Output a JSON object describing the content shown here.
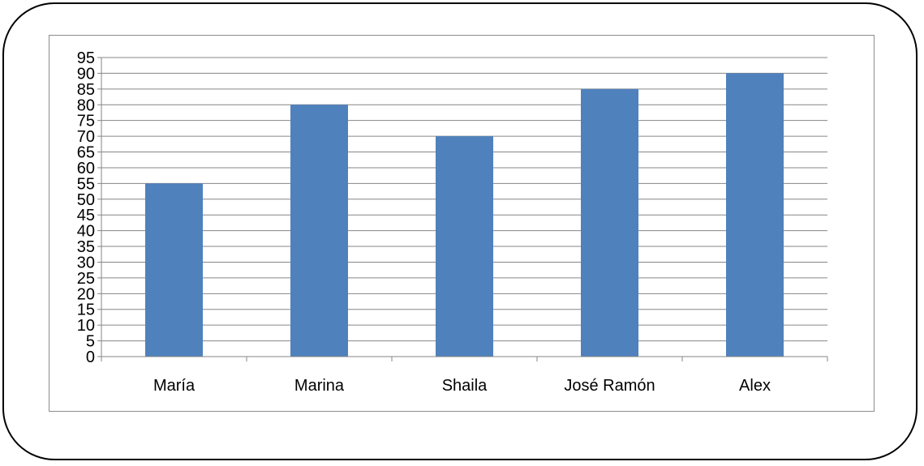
{
  "chart_data": {
    "type": "bar",
    "title": "",
    "xlabel": "",
    "ylabel": "",
    "categories": [
      "María",
      "Marina",
      "Shaila",
      "José Ramón",
      "Alex"
    ],
    "values": [
      55,
      80,
      70,
      85,
      90
    ],
    "ylim": [
      0,
      95
    ],
    "ytick_step": 5,
    "yticks": [
      "0",
      "5",
      "10",
      "15",
      "20",
      "25",
      "30",
      "35",
      "40",
      "45",
      "50",
      "55",
      "60",
      "65",
      "70",
      "75",
      "80",
      "85",
      "90",
      "95"
    ],
    "grid": true,
    "legend": "none",
    "colors": {
      "bar": "#4f81bd",
      "grid": "#868686",
      "axis": "#868686",
      "frame": "#000000"
    }
  }
}
